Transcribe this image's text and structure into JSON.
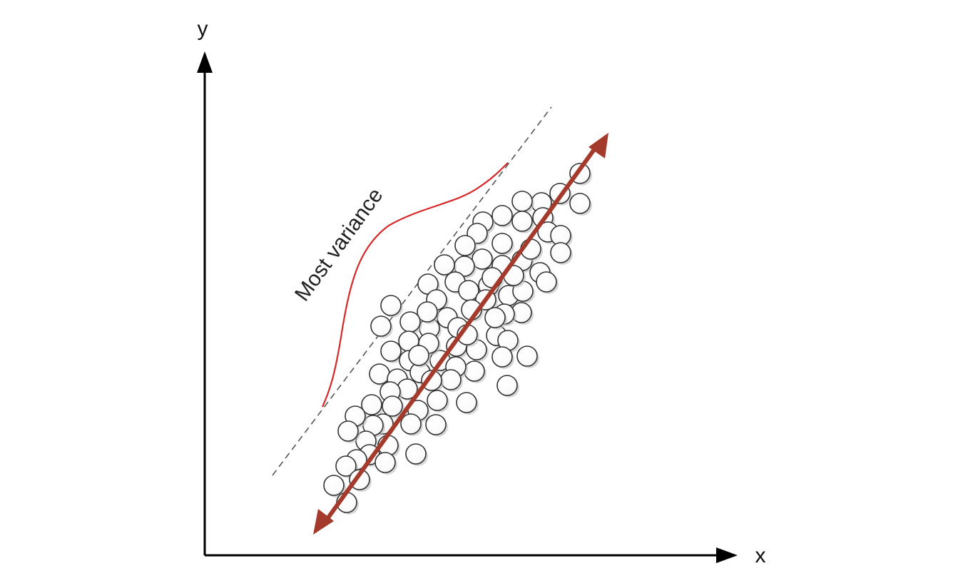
{
  "axes": {
    "x_label": "x",
    "y_label": "y"
  },
  "annotation": {
    "text": "Most variance"
  },
  "colors": {
    "axis": "#000000",
    "point_fill": "#ffffff",
    "point_stroke": "#333333",
    "point_shadow": "#bdbdbd",
    "principal_arrow": "#a33a2c",
    "variance_curve": "#d62828",
    "dashed_line": "#555555"
  },
  "icons": {
    "x_axis_arrowhead": "arrowhead-right-icon",
    "y_axis_arrowhead": "arrowhead-up-icon",
    "principal_axis_arrowheads": "double-arrowhead-icon"
  }
}
